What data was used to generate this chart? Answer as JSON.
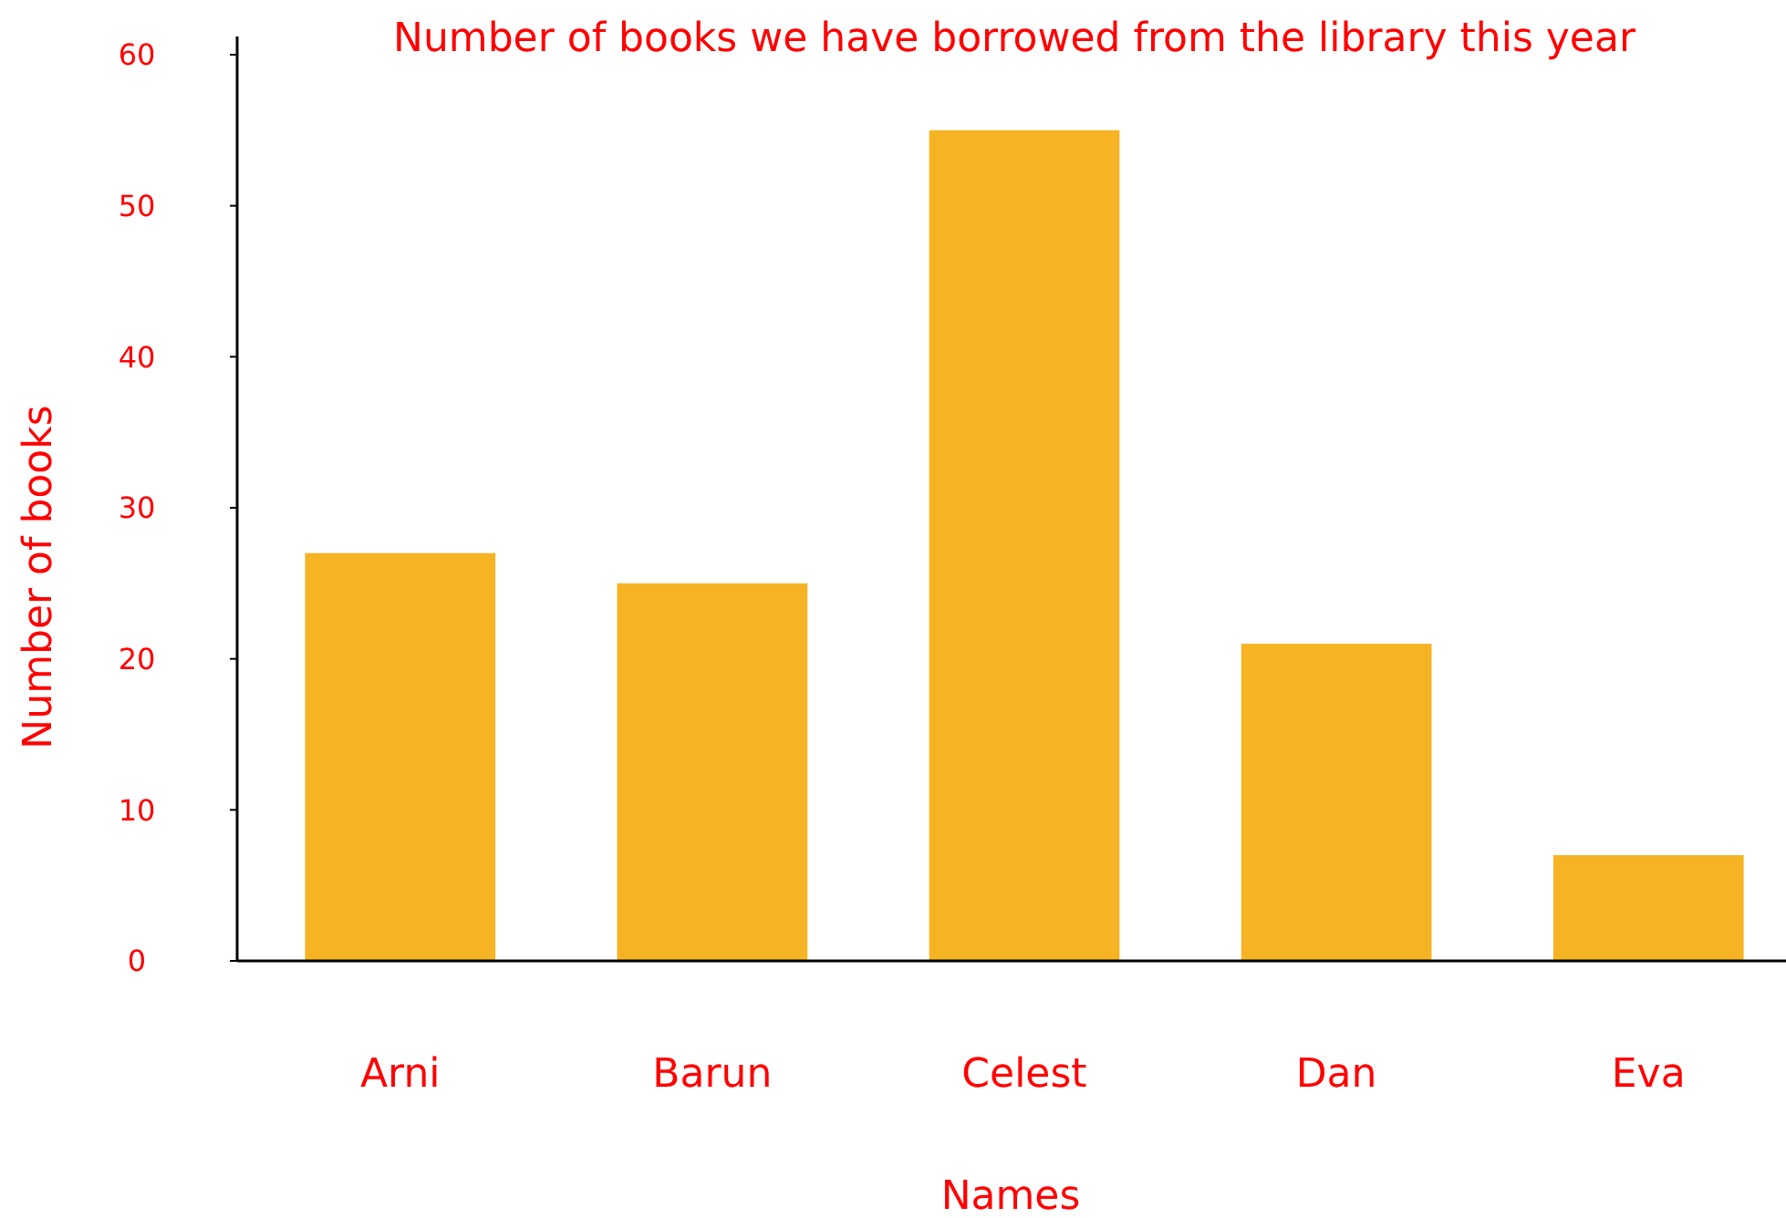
{
  "chart_data": {
    "type": "bar",
    "title": "Number of books we have borrowed from the library this year",
    "xlabel": "Names",
    "ylabel": "Number of books",
    "categories": [
      "Arni",
      "Barun",
      "Celest",
      "Dan",
      "Eva"
    ],
    "values": [
      27,
      25,
      55,
      21,
      7
    ],
    "color": "#f6b324",
    "ylim": [
      0,
      60
    ],
    "yticks": [
      0,
      10,
      20,
      30,
      40,
      50,
      60
    ],
    "grid": false
  }
}
